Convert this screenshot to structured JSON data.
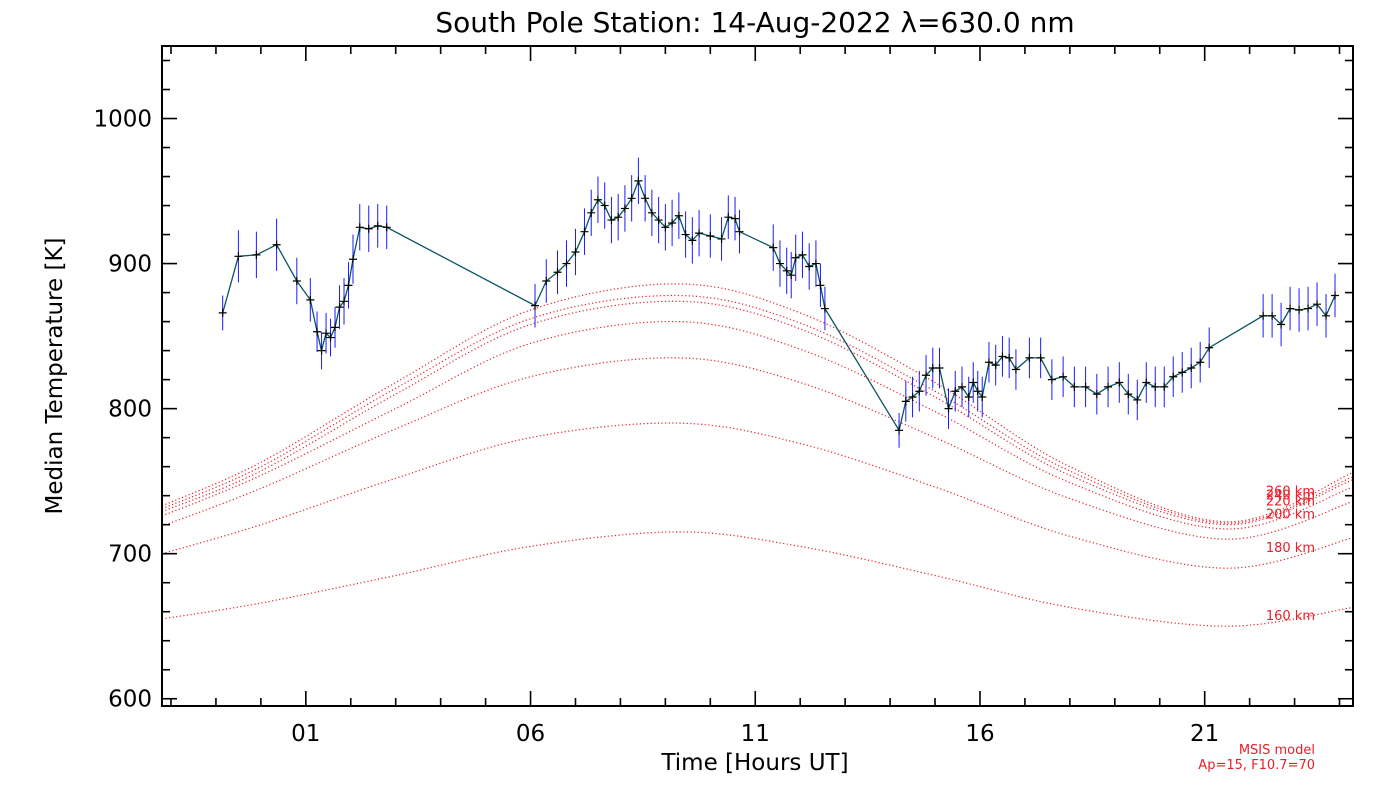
{
  "chart_data": {
    "type": "line",
    "title": "South Pole Station: 14-Aug-2022 λ=630.0 nm",
    "xlabel": "Time [Hours UT]",
    "ylabel": "Median Temperature [K]",
    "xlim": [
      -2.2,
      24.3
    ],
    "ylim": [
      595,
      1050
    ],
    "x_ticks": [
      1,
      6,
      11,
      16,
      21
    ],
    "x_tick_labels": [
      "01",
      "06",
      "11",
      "16",
      "21"
    ],
    "y_ticks": [
      600,
      700,
      800,
      900,
      1000
    ],
    "y_tick_labels": [
      "600",
      "700",
      "800",
      "900",
      "1000"
    ],
    "grid": false,
    "colors": {
      "measurement_line": "#0b5560",
      "error_bar": "#1a1aff",
      "marker": "#000000",
      "model": "#e8202a"
    },
    "measurements": [
      {
        "x": -0.85,
        "y": 866,
        "err": 12
      },
      {
        "x": -0.5,
        "y": 905,
        "err": 18
      },
      {
        "x": -0.1,
        "y": 906,
        "err": 16
      },
      {
        "x": 0.35,
        "y": 913,
        "err": 18
      },
      {
        "x": 0.8,
        "y": 888,
        "err": 16
      },
      {
        "x": 1.1,
        "y": 875,
        "err": 15
      },
      {
        "x": 1.25,
        "y": 853,
        "err": 14
      },
      {
        "x": 1.35,
        "y": 840,
        "err": 13
      },
      {
        "x": 1.45,
        "y": 852,
        "err": 14
      },
      {
        "x": 1.55,
        "y": 849,
        "err": 13
      },
      {
        "x": 1.65,
        "y": 856,
        "err": 14
      },
      {
        "x": 1.75,
        "y": 870,
        "err": 15
      },
      {
        "x": 1.85,
        "y": 874,
        "err": 16
      },
      {
        "x": 1.95,
        "y": 885,
        "err": 16
      },
      {
        "x": 2.05,
        "y": 903,
        "err": 17
      },
      {
        "x": 2.2,
        "y": 925,
        "err": 16
      },
      {
        "x": 2.4,
        "y": 924,
        "err": 16
      },
      {
        "x": 2.6,
        "y": 926,
        "err": 15
      },
      {
        "x": 2.8,
        "y": 925,
        "err": 15
      },
      {
        "x": 6.1,
        "y": 871,
        "err": 15
      },
      {
        "x": 6.35,
        "y": 888,
        "err": 15
      },
      {
        "x": 6.6,
        "y": 894,
        "err": 15
      },
      {
        "x": 6.8,
        "y": 900,
        "err": 16
      },
      {
        "x": 7.0,
        "y": 908,
        "err": 16
      },
      {
        "x": 7.2,
        "y": 922,
        "err": 16
      },
      {
        "x": 7.35,
        "y": 935,
        "err": 16
      },
      {
        "x": 7.5,
        "y": 944,
        "err": 16
      },
      {
        "x": 7.65,
        "y": 940,
        "err": 16
      },
      {
        "x": 7.8,
        "y": 930,
        "err": 16
      },
      {
        "x": 7.95,
        "y": 932,
        "err": 16
      },
      {
        "x": 8.1,
        "y": 938,
        "err": 16
      },
      {
        "x": 8.25,
        "y": 945,
        "err": 16
      },
      {
        "x": 8.4,
        "y": 957,
        "err": 16
      },
      {
        "x": 8.55,
        "y": 945,
        "err": 16
      },
      {
        "x": 8.7,
        "y": 935,
        "err": 16
      },
      {
        "x": 8.85,
        "y": 930,
        "err": 16
      },
      {
        "x": 9.0,
        "y": 925,
        "err": 16
      },
      {
        "x": 9.15,
        "y": 928,
        "err": 16
      },
      {
        "x": 9.3,
        "y": 933,
        "err": 16
      },
      {
        "x": 9.45,
        "y": 920,
        "err": 16
      },
      {
        "x": 9.6,
        "y": 916,
        "err": 16
      },
      {
        "x": 9.75,
        "y": 921,
        "err": 16
      },
      {
        "x": 10.0,
        "y": 919,
        "err": 15
      },
      {
        "x": 10.25,
        "y": 917,
        "err": 15
      },
      {
        "x": 10.4,
        "y": 932,
        "err": 15
      },
      {
        "x": 10.55,
        "y": 931,
        "err": 15
      },
      {
        "x": 10.65,
        "y": 922,
        "err": 15
      },
      {
        "x": 11.4,
        "y": 911,
        "err": 16
      },
      {
        "x": 11.55,
        "y": 900,
        "err": 16
      },
      {
        "x": 11.7,
        "y": 895,
        "err": 16
      },
      {
        "x": 11.8,
        "y": 892,
        "err": 16
      },
      {
        "x": 11.9,
        "y": 904,
        "err": 16
      },
      {
        "x": 12.05,
        "y": 906,
        "err": 16
      },
      {
        "x": 12.2,
        "y": 898,
        "err": 16
      },
      {
        "x": 12.35,
        "y": 900,
        "err": 16
      },
      {
        "x": 12.45,
        "y": 885,
        "err": 15
      },
      {
        "x": 12.55,
        "y": 869,
        "err": 15
      },
      {
        "x": 14.2,
        "y": 785,
        "err": 12
      },
      {
        "x": 14.35,
        "y": 805,
        "err": 14
      },
      {
        "x": 14.5,
        "y": 808,
        "err": 14
      },
      {
        "x": 14.65,
        "y": 812,
        "err": 14
      },
      {
        "x": 14.8,
        "y": 823,
        "err": 14
      },
      {
        "x": 14.95,
        "y": 828,
        "err": 14
      },
      {
        "x": 15.1,
        "y": 828,
        "err": 14
      },
      {
        "x": 15.3,
        "y": 800,
        "err": 14
      },
      {
        "x": 15.45,
        "y": 812,
        "err": 14
      },
      {
        "x": 15.6,
        "y": 815,
        "err": 14
      },
      {
        "x": 15.75,
        "y": 808,
        "err": 14
      },
      {
        "x": 15.85,
        "y": 818,
        "err": 14
      },
      {
        "x": 15.95,
        "y": 812,
        "err": 14
      },
      {
        "x": 16.05,
        "y": 808,
        "err": 14
      },
      {
        "x": 16.2,
        "y": 832,
        "err": 14
      },
      {
        "x": 16.35,
        "y": 830,
        "err": 14
      },
      {
        "x": 16.5,
        "y": 836,
        "err": 14
      },
      {
        "x": 16.65,
        "y": 835,
        "err": 14
      },
      {
        "x": 16.8,
        "y": 827,
        "err": 14
      },
      {
        "x": 17.1,
        "y": 835,
        "err": 14
      },
      {
        "x": 17.35,
        "y": 835,
        "err": 14
      },
      {
        "x": 17.6,
        "y": 820,
        "err": 14
      },
      {
        "x": 17.85,
        "y": 822,
        "err": 14
      },
      {
        "x": 18.1,
        "y": 815,
        "err": 14
      },
      {
        "x": 18.35,
        "y": 815,
        "err": 14
      },
      {
        "x": 18.6,
        "y": 810,
        "err": 14
      },
      {
        "x": 18.85,
        "y": 815,
        "err": 14
      },
      {
        "x": 19.1,
        "y": 818,
        "err": 14
      },
      {
        "x": 19.3,
        "y": 810,
        "err": 14
      },
      {
        "x": 19.5,
        "y": 806,
        "err": 14
      },
      {
        "x": 19.7,
        "y": 818,
        "err": 14
      },
      {
        "x": 19.9,
        "y": 815,
        "err": 14
      },
      {
        "x": 20.1,
        "y": 815,
        "err": 14
      },
      {
        "x": 20.3,
        "y": 822,
        "err": 14
      },
      {
        "x": 20.5,
        "y": 825,
        "err": 14
      },
      {
        "x": 20.7,
        "y": 828,
        "err": 14
      },
      {
        "x": 20.9,
        "y": 832,
        "err": 14
      },
      {
        "x": 21.1,
        "y": 842,
        "err": 14
      },
      {
        "x": 22.3,
        "y": 864,
        "err": 15
      },
      {
        "x": 22.5,
        "y": 864,
        "err": 15
      },
      {
        "x": 22.7,
        "y": 858,
        "err": 15
      },
      {
        "x": 22.9,
        "y": 869,
        "err": 15
      },
      {
        "x": 23.1,
        "y": 868,
        "err": 15
      },
      {
        "x": 23.3,
        "y": 869,
        "err": 15
      },
      {
        "x": 23.5,
        "y": 872,
        "err": 15
      },
      {
        "x": 23.7,
        "y": 864,
        "err": 15
      },
      {
        "x": 23.9,
        "y": 878,
        "err": 15
      }
    ],
    "model_curves": [
      {
        "name": "160 km",
        "x": [
          -2.2,
          0,
          3,
          6,
          9.3,
          12,
          15,
          18,
          21.5,
          24.3
        ],
        "y": [
          655,
          666,
          685,
          705,
          715,
          705,
          685,
          663,
          650,
          663
        ]
      },
      {
        "name": "180 km",
        "x": [
          -2.2,
          0,
          3,
          6,
          9.3,
          12,
          15,
          18,
          21.5,
          24.3
        ],
        "y": [
          700,
          720,
          752,
          780,
          790,
          776,
          746,
          712,
          690,
          711
        ]
      },
      {
        "name": "200 km",
        "x": [
          -2.2,
          0,
          3,
          6,
          9.3,
          12,
          15,
          18,
          21.5,
          24.3
        ],
        "y": [
          719,
          745,
          786,
          822,
          835,
          818,
          780,
          738,
          710,
          736
        ]
      },
      {
        "name": "220 km",
        "x": [
          -2.2,
          0,
          3,
          6,
          9.3,
          12,
          15,
          18,
          21.5,
          24.3
        ],
        "y": [
          726,
          754,
          800,
          845,
          860,
          841,
          798,
          749,
          717,
          746
        ]
      },
      {
        "name": "240 km",
        "x": [
          -2.2,
          0,
          3,
          6,
          9.3,
          12,
          15,
          18,
          21.5,
          24.3
        ],
        "y": [
          729,
          757,
          810,
          858,
          874,
          855,
          808,
          754,
          720,
          751
        ]
      },
      {
        "name": "260 km",
        "x": [
          -2.2,
          0,
          3,
          6,
          9.3,
          12,
          15,
          18,
          21.5,
          24.3
        ],
        "y": [
          731,
          760,
          814,
          862,
          878,
          859,
          812,
          757,
          721,
          753
        ]
      },
      {
        "name": "",
        "x": [
          -2.2,
          0,
          3,
          6,
          9.3,
          12,
          15,
          18,
          21.5,
          24.3
        ],
        "y": [
          733,
          763,
          818,
          868,
          886,
          866,
          818,
          760,
          722,
          756
        ]
      }
    ],
    "model_labels": [
      {
        "text": "260 km",
        "y": 743
      },
      {
        "text": "240 km",
        "y": 740
      },
      {
        "text": "220 km",
        "y": 736
      },
      {
        "text": "200 km",
        "y": 727
      },
      {
        "text": "180 km",
        "y": 704
      },
      {
        "text": "160 km",
        "y": 657
      }
    ],
    "notes": [
      "MSIS model",
      "Ap=15, F10.7=70"
    ]
  }
}
